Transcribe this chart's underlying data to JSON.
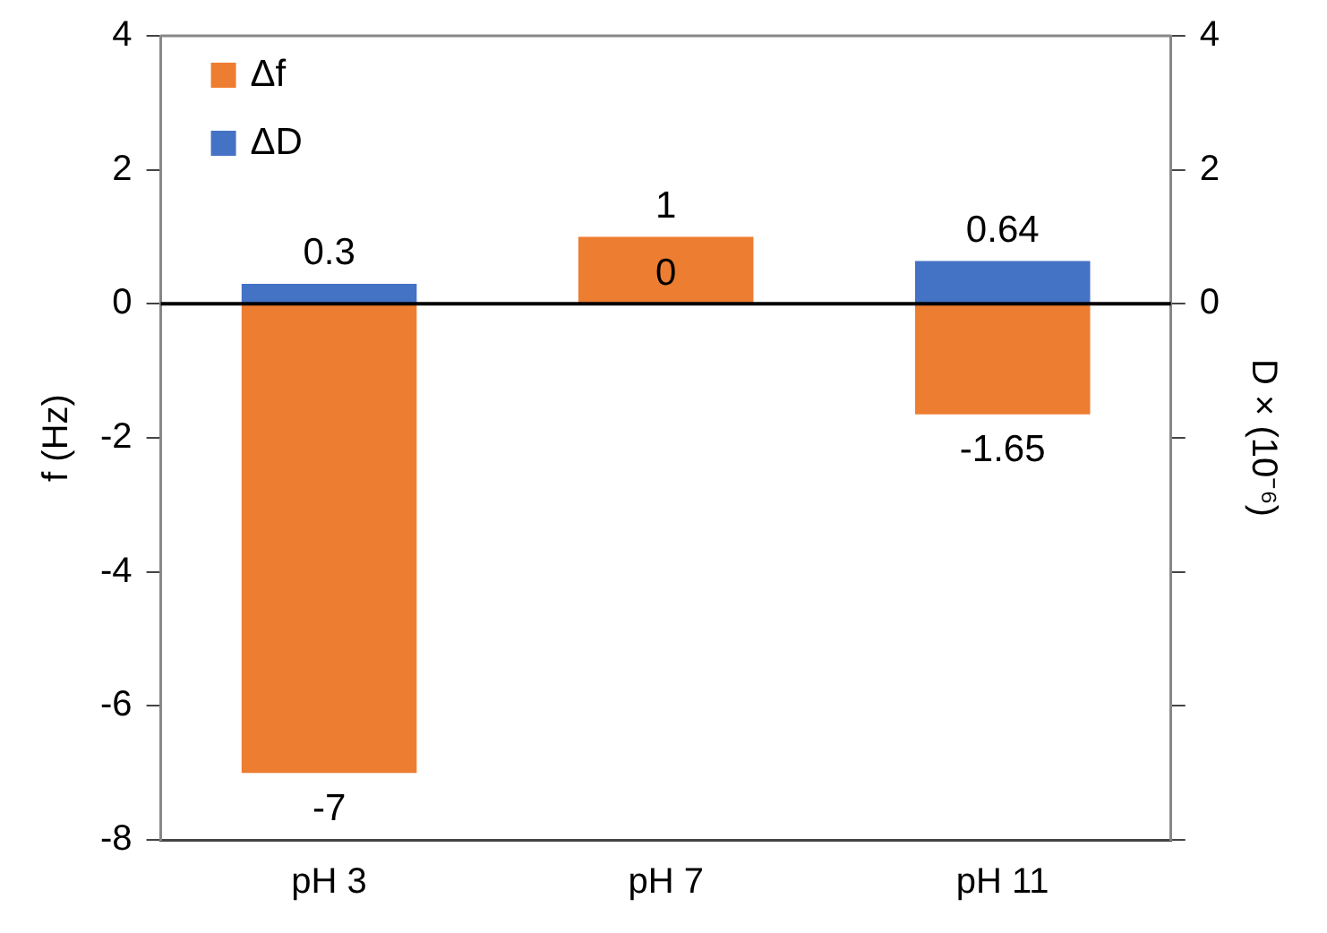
{
  "chart_data": {
    "type": "bar",
    "categories": [
      "pH 3",
      "pH 7",
      "pH 11"
    ],
    "series": [
      {
        "name": "Δf",
        "color": "#ed7d31",
        "values": [
          -7,
          1,
          -1.65
        ]
      },
      {
        "name": "ΔD",
        "color": "#4472c4",
        "values": [
          0.3,
          0,
          0.64
        ],
        "axis": "y2"
      }
    ],
    "ylabel": "f (Hz)",
    "y2label": "D × (10⁻⁶)",
    "ylim": [
      -8,
      4
    ],
    "yticks": [
      -8,
      -6,
      -4,
      -2,
      0,
      2,
      4
    ],
    "y2lim": [
      -8,
      4
    ],
    "y2ticks": [
      {
        "value": -8,
        "label": null
      },
      {
        "value": -6,
        "label": null
      },
      {
        "value": -4,
        "label": null
      },
      {
        "value": -2,
        "label": null
      },
      0,
      2,
      4
    ],
    "data_labels": true,
    "stacked": true,
    "ref_lines": [
      {
        "axis": "y",
        "value": 0,
        "color": "#000000"
      }
    ],
    "grid": false,
    "legend": "top left"
  }
}
